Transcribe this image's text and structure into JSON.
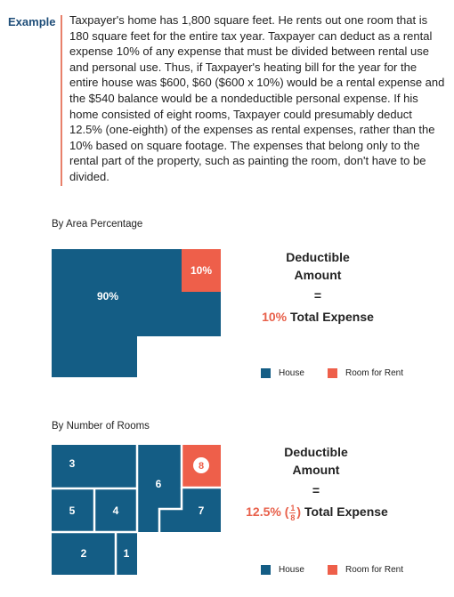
{
  "example": {
    "label": "Example",
    "text": "Taxpayer's home has 1,800 square feet. He rents out one room that is 180 square feet for the entire tax year. Taxpayer can deduct as a rental expense 10% of any expense that must be divided between rental use and personal use. Thus, if Taxpayer's heating bill for the year for the entire house was $600, $60 ($600 x 10%) would be a rental expense and the $540 balance would be a nondeductible personal expense. If his home consisted of eight rooms, Taxpayer could presumably deduct 12.5% (one-eighth) of the expenses as rental expenses, rather than the 10% based on square footage. The expenses that belong only to the rental part of the property, such as painting the room, don't have to be divided."
  },
  "colors": {
    "house": "#145d85",
    "rent": "#ee5f4a",
    "text_dark": "#1f4e79"
  },
  "area_section": {
    "title": "By Area Percentage",
    "house_label": "90%",
    "rent_label": "10%",
    "deductible_line1": "Deductible",
    "deductible_line2": "Amount",
    "equals": "=",
    "total_highlight": "10%",
    "total_rest": "Total Expense",
    "legend_house": "House",
    "legend_rent": "Room for Rent"
  },
  "rooms_section": {
    "title": "By Number of Rooms",
    "rooms": [
      "3",
      "6",
      "8",
      "5",
      "4",
      "7",
      "2",
      "1"
    ],
    "deductible_line1": "Deductible",
    "deductible_line2": "Amount",
    "equals": "=",
    "total_highlight": "12.5% (",
    "frac_num": "1",
    "frac_den": "8",
    "total_close": ")",
    "total_rest": "Total Expense",
    "legend_house": "House",
    "legend_rent": "Room for Rent"
  }
}
